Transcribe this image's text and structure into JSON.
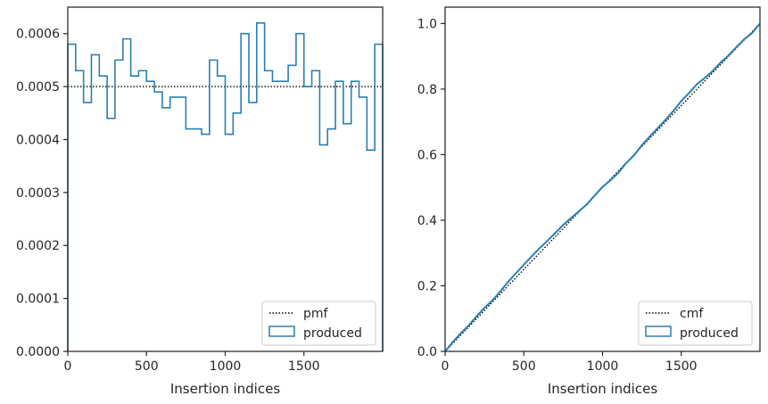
{
  "colors": {
    "series": "#2a7fb0",
    "reference": "#000000",
    "frame": "#262626"
  },
  "chart_data": [
    {
      "type": "histogram-step",
      "xlabel": "Insertion indices",
      "ylabel": "",
      "xlim": [
        0,
        2000
      ],
      "ylim": [
        0,
        0.00065
      ],
      "xticks": [
        0,
        500,
        1000,
        1500
      ],
      "yticks": [
        0.0,
        0.0001,
        0.0002,
        0.0003,
        0.0004,
        0.0005,
        0.0006
      ],
      "ytick_labels": [
        "0.0000",
        "0.0001",
        "0.0002",
        "0.0003",
        "0.0004",
        "0.0005",
        "0.0006"
      ],
      "legend": {
        "placement": "lower-right",
        "entries": [
          "pmf",
          "produced"
        ]
      },
      "reference": {
        "name": "pmf",
        "style": "dotted",
        "y": 0.0005
      },
      "series": [
        {
          "name": "produced",
          "bin_width": 50,
          "bin_edges_start": 0,
          "values": [
            0.00058,
            0.00053,
            0.00047,
            0.00056,
            0.00052,
            0.00044,
            0.00055,
            0.00059,
            0.00052,
            0.00053,
            0.00051,
            0.00049,
            0.00046,
            0.00048,
            0.00048,
            0.00042,
            0.00042,
            0.00041,
            0.00055,
            0.00052,
            0.00041,
            0.00045,
            0.0006,
            0.00047,
            0.00062,
            0.00053,
            0.00051,
            0.00051,
            0.00054,
            0.0006,
            0.0005,
            0.00053,
            0.00039,
            0.00042,
            0.00051,
            0.00043,
            0.00051,
            0.00048,
            0.00038,
            0.00058
          ]
        }
      ]
    },
    {
      "type": "line",
      "xlabel": "Insertion indices",
      "ylabel": "",
      "xlim": [
        0,
        2000
      ],
      "ylim": [
        0,
        1.05
      ],
      "xticks": [
        0,
        500,
        1000,
        1500
      ],
      "yticks": [
        0.0,
        0.2,
        0.4,
        0.6,
        0.8,
        1.0
      ],
      "ytick_labels": [
        "0.0",
        "0.2",
        "0.4",
        "0.6",
        "0.8",
        "1.0"
      ],
      "legend": {
        "placement": "lower-right",
        "entries": [
          "cmf",
          "produced"
        ]
      },
      "reference": {
        "name": "cmf",
        "style": "dotted",
        "x": [
          0,
          2000
        ],
        "y": [
          0,
          1
        ]
      },
      "series": [
        {
          "name": "produced",
          "derived_from": "cumulative sum of left histogram"
        }
      ]
    }
  ]
}
